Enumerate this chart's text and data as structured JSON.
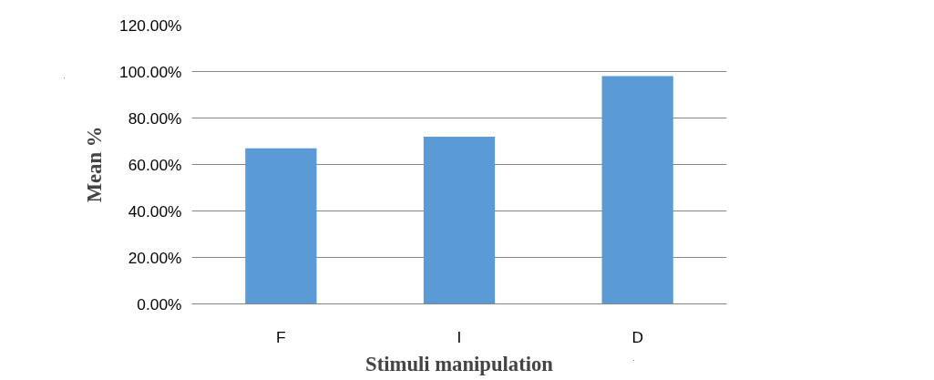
{
  "chart_data": {
    "type": "bar",
    "categories": [
      "F",
      "I",
      "D"
    ],
    "values": [
      67,
      72,
      98
    ],
    "color": "#5b9bd5",
    "xlabel": "Stimuli manipulation",
    "ylabel": "Mean %",
    "ylim": [
      0,
      120
    ],
    "yticks": [
      {
        "value": 0,
        "label": "0.00%"
      },
      {
        "value": 20,
        "label": "20.00%"
      },
      {
        "value": 40,
        "label": "40.00%"
      },
      {
        "value": 60,
        "label": "60.00%"
      },
      {
        "value": 80,
        "label": "80.00%"
      },
      {
        "value": 100,
        "label": "100.00%"
      },
      {
        "value": 120,
        "label": "120.00%"
      }
    ],
    "grid": "y"
  }
}
